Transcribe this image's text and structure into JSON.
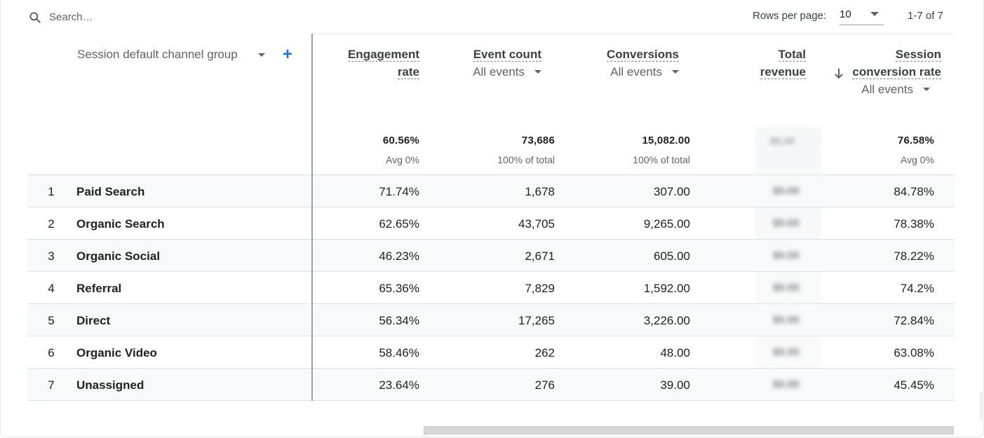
{
  "search": {
    "placeholder": "Search…"
  },
  "pagination": {
    "rows_label": "Rows per page:",
    "rows_value": "10",
    "range": "1-7 of 7"
  },
  "dimension": {
    "header": "Session default channel group"
  },
  "metrics": [
    {
      "line1": "Engagement",
      "line2": "rate",
      "sub": "",
      "total": "60.56%",
      "total_sub": "Avg 0%"
    },
    {
      "line1": "Event count",
      "line2": "",
      "sub": "All events",
      "total": "73,686",
      "total_sub": "100% of total"
    },
    {
      "line1": "Conversions",
      "line2": "",
      "sub": "All events",
      "total": "15,082.00",
      "total_sub": "100% of total"
    },
    {
      "line1": "Total",
      "line2": "revenue",
      "sub": "",
      "total": "$0.00",
      "total_sub": ""
    },
    {
      "line1": "Session",
      "line2": "conversion rate",
      "sub": "All events",
      "total": "76.58%",
      "total_sub": "Avg 0%"
    }
  ],
  "rows": [
    {
      "index": "1",
      "name": "Paid Search",
      "engagement": "71.74%",
      "events": "1,678",
      "conversions": "307.00",
      "revenue": "$0.00",
      "conv_rate": "84.78%"
    },
    {
      "index": "2",
      "name": "Organic Search",
      "engagement": "62.65%",
      "events": "43,705",
      "conversions": "9,265.00",
      "revenue": "$0.00",
      "conv_rate": "78.38%"
    },
    {
      "index": "3",
      "name": "Organic Social",
      "engagement": "46.23%",
      "events": "2,671",
      "conversions": "605.00",
      "revenue": "$0.00",
      "conv_rate": "78.22%"
    },
    {
      "index": "4",
      "name": "Referral",
      "engagement": "65.36%",
      "events": "7,829",
      "conversions": "1,592.00",
      "revenue": "$0.00",
      "conv_rate": "74.2%"
    },
    {
      "index": "5",
      "name": "Direct",
      "engagement": "56.34%",
      "events": "17,265",
      "conversions": "3,226.00",
      "revenue": "$0.00",
      "conv_rate": "72.84%"
    },
    {
      "index": "6",
      "name": "Organic Video",
      "engagement": "58.46%",
      "events": "262",
      "conversions": "48.00",
      "revenue": "$0.00",
      "conv_rate": "63.08%"
    },
    {
      "index": "7",
      "name": "Unassigned",
      "engagement": "23.64%",
      "events": "276",
      "conversions": "39.00",
      "revenue": "$0.00",
      "conv_rate": "45.45%"
    }
  ],
  "colors": {
    "accent": "#1a73e8",
    "row_shade": "#f8f9fa",
    "divider": "#9aa0a6"
  },
  "icons": {
    "search": "search-icon",
    "add": "add-dimension-icon",
    "sort": "sort-descending-icon"
  }
}
